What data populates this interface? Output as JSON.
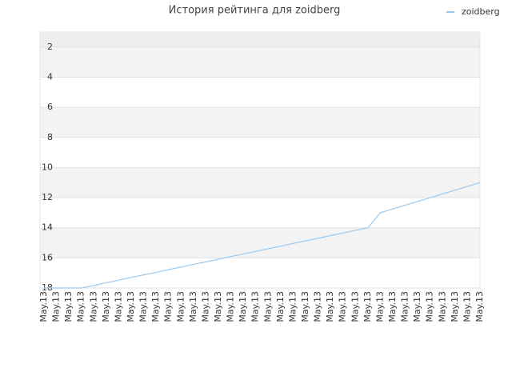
{
  "chart_data": {
    "type": "line",
    "title": "История рейтинга для zoidberg",
    "categories": [
      "May.13",
      "May.13",
      "May.13",
      "May.13",
      "May.13",
      "May.13",
      "May.13",
      "May.13",
      "May.13",
      "May.13",
      "May.13",
      "May.13",
      "May.13",
      "May.13",
      "May.13",
      "May.13",
      "May.13",
      "May.13",
      "May.13",
      "May.13",
      "May.13",
      "May.13",
      "May.13",
      "May.13",
      "May.13",
      "May.13",
      "May.13",
      "May.13",
      "May.13",
      "May.13",
      "May.13",
      "May.13",
      "May.13",
      "May.13",
      "May.13",
      "May.13"
    ],
    "series": [
      {
        "name": "zoidberg",
        "color": "#99c9f0",
        "values": [
          18,
          18,
          18,
          18,
          17.83,
          17.65,
          17.48,
          17.3,
          17.13,
          16.96,
          16.78,
          16.61,
          16.43,
          16.26,
          16.09,
          15.91,
          15.74,
          15.57,
          15.39,
          15.22,
          15.04,
          14.87,
          14.7,
          14.52,
          14.35,
          14.17,
          14,
          13,
          12.75,
          12.5,
          12.25,
          12,
          11.75,
          11.5,
          11.25,
          11
        ]
      }
    ],
    "ylim": [
      1,
      18
    ],
    "y_inverted": true,
    "yticks": [
      2,
      4,
      6,
      8,
      10,
      12,
      14,
      16,
      18
    ],
    "grid": true,
    "legend": "top-right"
  }
}
